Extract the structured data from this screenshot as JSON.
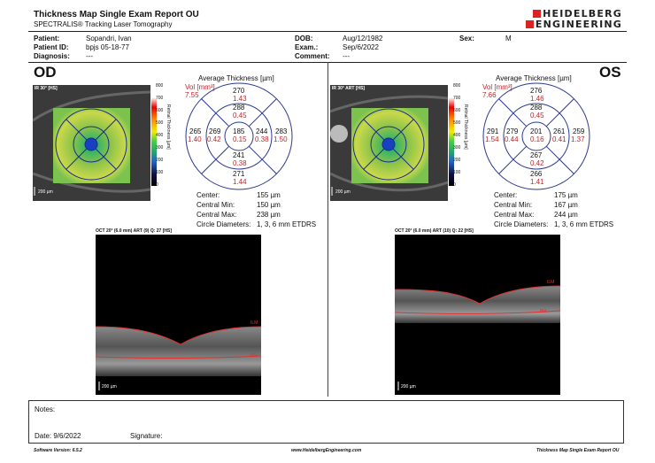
{
  "header": {
    "title": "Thickness Map Single Exam Report OU",
    "subtitle": "SPECTRALIS® Tracking Laser Tomography",
    "logo_line1": "HEIDELBERG",
    "logo_line2": "ENGINEERING"
  },
  "patient": {
    "patient_label": "Patient:",
    "patient_value": "Sopandri, Ivan",
    "id_label": "Patient ID:",
    "id_value": "bpjs 05-18-77",
    "diag_label": "Diagnosis:",
    "diag_value": "---",
    "dob_label": "DOB:",
    "dob_value": "Aug/12/1982",
    "exam_label": "Exam.:",
    "exam_value": "Sep/6/2022",
    "comment_label": "Comment:",
    "comment_value": "---",
    "sex_label": "Sex:",
    "sex_value": "M"
  },
  "od": {
    "eye_label": "OD",
    "fundus_tag": "IR 30° [HS]",
    "fundus_scale": "200 µm",
    "colorbar_ticks": [
      "800",
      "700",
      "600",
      "500",
      "400",
      "300",
      "200",
      "100",
      "0"
    ],
    "colorbar_title": "Retinal Thickness [µm]",
    "etdrs_title": "Average Thickness [µm]",
    "vol_label": "Vol [mm³]",
    "vol_value": "7.55",
    "center_t": "185",
    "center_v": "0.15",
    "inner_sup_t": "288",
    "inner_sup_v": "0.45",
    "inner_inf_t": "241",
    "inner_inf_v": "0.38",
    "inner_nas_t": "269",
    "inner_nas_v": "0.42",
    "inner_tmp_t": "244",
    "inner_tmp_v": "0.38",
    "outer_sup_t": "270",
    "outer_sup_v": "1.43",
    "outer_inf_t": "271",
    "outer_inf_v": "1.44",
    "outer_nas_t": "265",
    "outer_nas_v": "1.40",
    "outer_tmp_t": "283",
    "outer_tmp_v": "1.50",
    "stats": {
      "center_label": "Center:",
      "center_value": "155 µm",
      "min_label": "Central Min:",
      "min_value": "150 µm",
      "max_label": "Central Max:",
      "max_value": "238 µm",
      "circ_label": "Circle Diameters:",
      "circ_value": "1, 3, 6 mm ETDRS"
    },
    "oct_title": "OCT 20° (6.0 mm) ART (9) Q: 27 [HS]",
    "oct_ilm": "ILM",
    "oct_bm": "BM",
    "oct_scale": "200 µm"
  },
  "os": {
    "eye_label": "OS",
    "fundus_tag": "IR 30° ART [HS]",
    "fundus_scale": "200 µm",
    "colorbar_ticks": [
      "800",
      "700",
      "600",
      "500",
      "400",
      "300",
      "200",
      "100",
      "0"
    ],
    "colorbar_title": "Retinal Thickness [µm]",
    "etdrs_title": "Average Thickness [µm]",
    "vol_label": "Vol [mm³]",
    "vol_value": "7.66",
    "center_t": "201",
    "center_v": "0.16",
    "inner_sup_t": "288",
    "inner_sup_v": "0.45",
    "inner_inf_t": "267",
    "inner_inf_v": "0.42",
    "inner_nas_t": "279",
    "inner_nas_v": "0.44",
    "inner_tmp_t": "261",
    "inner_tmp_v": "0.41",
    "outer_sup_t": "276",
    "outer_sup_v": "1.46",
    "outer_inf_t": "266",
    "outer_inf_v": "1.41",
    "outer_nas_t": "291",
    "outer_nas_v": "1.54",
    "outer_tmp_t": "259",
    "outer_tmp_v": "1.37",
    "stats": {
      "center_label": "Center:",
      "center_value": "175 µm",
      "min_label": "Central Min:",
      "min_value": "167 µm",
      "max_label": "Central Max:",
      "max_value": "244 µm",
      "circ_label": "Circle Diameters:",
      "circ_value": "1, 3, 6 mm ETDRS"
    },
    "oct_title": "OCT 20° (6.0 mm) ART (10) Q: 22 [HS]",
    "oct_ilm": "ILM",
    "oct_bm": "BM",
    "oct_scale": "200 µm"
  },
  "notes": {
    "notes_label": "Notes:",
    "date_label": "Date: 9/6/2022",
    "signature_label": "Signature:"
  },
  "footer": {
    "software": "Software Version: 6.5.2",
    "website": "www.HeidelbergEngineering.com",
    "report": "Thickness Map Single Exam Report OU"
  },
  "colors": {
    "etdrs_ring": "#2b3a8f",
    "volume_red": "#c0282d",
    "logo_red": "#d22222",
    "ilm_line": "#e03030"
  }
}
